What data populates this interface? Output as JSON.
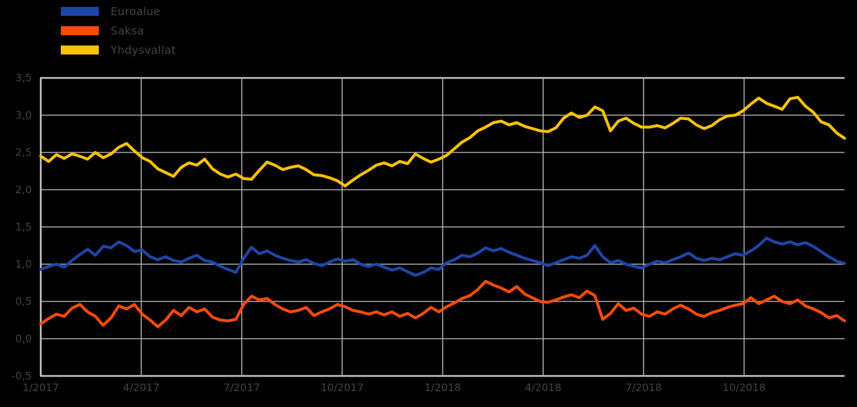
{
  "background_color": "#000000",
  "text_color": "#434343",
  "grid_color": "#a9a9a9",
  "border_color": "#c6c6c6",
  "chart_data": {
    "type": "line",
    "title": "",
    "xlabel": "",
    "ylabel": "",
    "grid": true,
    "legend_position": "top-left",
    "ylim": [
      -0.5,
      3.5
    ],
    "y_tick_values": [
      3.5,
      3.0,
      2.5,
      2.0,
      1.5,
      1.0,
      0.5,
      0.0,
      -0.5
    ],
    "y_tick_labels": [
      "3,5",
      "3,0",
      "2,5",
      "2,0",
      "1,5",
      "1,0",
      "0,5",
      "0,0",
      "-0,5"
    ],
    "x_range_months": 24,
    "x_start": "1/2017",
    "x_tick_month_positions": [
      0,
      3,
      6,
      9,
      12,
      15,
      18,
      21
    ],
    "x_tick_labels": [
      "1/2017",
      "4/2017",
      "7/2017",
      "10/2017",
      "1/2018",
      "4/2018",
      "7/2018",
      "10/2018"
    ],
    "x_unit": "week",
    "series": [
      {
        "name": "Euroalue",
        "color": "#1e46a8",
        "values": [
          0.93,
          0.97,
          1.0,
          0.96,
          1.05,
          1.13,
          1.2,
          1.12,
          1.24,
          1.22,
          1.3,
          1.25,
          1.17,
          1.19,
          1.1,
          1.06,
          1.1,
          1.05,
          1.03,
          1.08,
          1.12,
          1.05,
          1.03,
          0.97,
          0.93,
          0.89,
          1.08,
          1.23,
          1.14,
          1.18,
          1.12,
          1.08,
          1.05,
          1.03,
          1.06,
          1.01,
          0.98,
          1.03,
          1.07,
          1.04,
          1.06,
          1.0,
          0.97,
          1.0,
          0.96,
          0.92,
          0.95,
          0.9,
          0.85,
          0.89,
          0.95,
          0.93,
          1.02,
          1.06,
          1.12,
          1.1,
          1.15,
          1.22,
          1.18,
          1.21,
          1.16,
          1.12,
          1.08,
          1.05,
          1.02,
          0.98,
          1.02,
          1.06,
          1.1,
          1.08,
          1.12,
          1.25,
          1.1,
          1.02,
          1.05,
          1.0,
          0.97,
          0.95,
          1.0,
          1.04,
          1.02,
          1.06,
          1.1,
          1.15,
          1.08,
          1.05,
          1.08,
          1.06,
          1.1,
          1.14,
          1.12,
          1.18,
          1.25,
          1.35,
          1.3,
          1.27,
          1.3,
          1.26,
          1.29,
          1.24,
          1.17,
          1.1,
          1.04,
          1.01
        ]
      },
      {
        "name": "Saksa",
        "color": "#fa4b08",
        "values": [
          0.2,
          0.27,
          0.33,
          0.3,
          0.41,
          0.46,
          0.36,
          0.3,
          0.18,
          0.28,
          0.44,
          0.4,
          0.46,
          0.33,
          0.25,
          0.16,
          0.25,
          0.38,
          0.31,
          0.42,
          0.36,
          0.4,
          0.29,
          0.25,
          0.24,
          0.26,
          0.46,
          0.57,
          0.52,
          0.54,
          0.46,
          0.4,
          0.36,
          0.38,
          0.42,
          0.31,
          0.36,
          0.4,
          0.46,
          0.43,
          0.38,
          0.36,
          0.33,
          0.36,
          0.32,
          0.36,
          0.3,
          0.34,
          0.28,
          0.34,
          0.42,
          0.36,
          0.43,
          0.48,
          0.54,
          0.58,
          0.66,
          0.77,
          0.72,
          0.68,
          0.63,
          0.7,
          0.6,
          0.55,
          0.5,
          0.49,
          0.52,
          0.56,
          0.59,
          0.55,
          0.64,
          0.58,
          0.26,
          0.34,
          0.47,
          0.38,
          0.41,
          0.33,
          0.3,
          0.36,
          0.33,
          0.4,
          0.45,
          0.4,
          0.33,
          0.3,
          0.35,
          0.38,
          0.42,
          0.45,
          0.47,
          0.55,
          0.47,
          0.52,
          0.57,
          0.5,
          0.47,
          0.52,
          0.44,
          0.4,
          0.35,
          0.28,
          0.31,
          0.24
        ]
      },
      {
        "name": "Yhdysvallat",
        "color": "#fbc108",
        "values": [
          2.45,
          2.38,
          2.47,
          2.42,
          2.48,
          2.45,
          2.41,
          2.5,
          2.43,
          2.48,
          2.57,
          2.62,
          2.52,
          2.43,
          2.38,
          2.28,
          2.23,
          2.18,
          2.3,
          2.36,
          2.33,
          2.41,
          2.28,
          2.21,
          2.17,
          2.21,
          2.15,
          2.14,
          2.26,
          2.37,
          2.33,
          2.27,
          2.3,
          2.32,
          2.27,
          2.2,
          2.19,
          2.16,
          2.12,
          2.05,
          2.13,
          2.2,
          2.26,
          2.33,
          2.36,
          2.32,
          2.38,
          2.35,
          2.48,
          2.42,
          2.37,
          2.41,
          2.46,
          2.55,
          2.64,
          2.7,
          2.79,
          2.84,
          2.9,
          2.92,
          2.87,
          2.9,
          2.85,
          2.82,
          2.79,
          2.78,
          2.83,
          2.96,
          3.03,
          2.97,
          3.0,
          3.11,
          3.06,
          2.79,
          2.92,
          2.96,
          2.89,
          2.84,
          2.84,
          2.86,
          2.83,
          2.89,
          2.96,
          2.95,
          2.87,
          2.82,
          2.86,
          2.94,
          2.99,
          3.0,
          3.06,
          3.15,
          3.23,
          3.16,
          3.12,
          3.08,
          3.22,
          3.24,
          3.12,
          3.04,
          2.91,
          2.87,
          2.76,
          2.69
        ]
      }
    ]
  }
}
